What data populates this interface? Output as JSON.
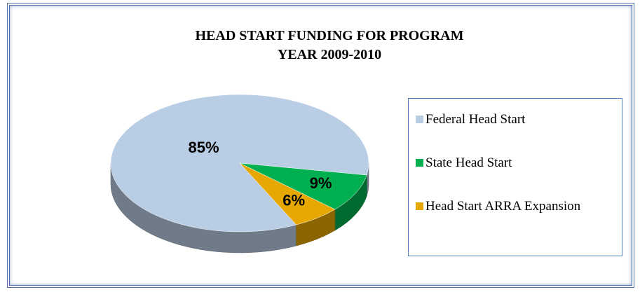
{
  "chart_data": {
    "type": "pie3d",
    "title": "HEAD START FUNDING FOR PROGRAM YEAR 2009-2010",
    "categories": [
      "Federal Head Start",
      "State Head Start",
      "Head Start ARRA Expansion"
    ],
    "values": [
      85,
      9,
      6
    ],
    "value_labels": [
      "85%",
      "9%",
      "6%"
    ],
    "colors": [
      "#b9cde5",
      "#00b050",
      "#e6a800"
    ],
    "legend": "right"
  }
}
